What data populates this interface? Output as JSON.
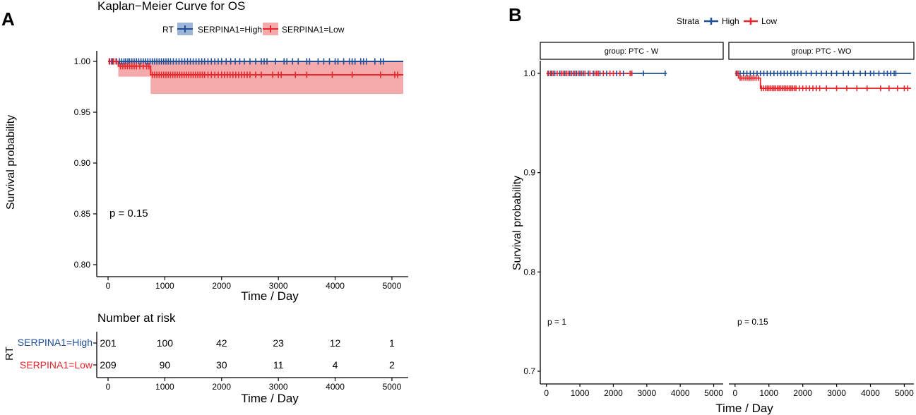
{
  "panel_a": {
    "letter": "A",
    "title": "Kaplan−Meier Curve for OS",
    "legend": {
      "title": "RT",
      "items": [
        "SERPINA1=High",
        "SERPINA1=Low"
      ]
    },
    "ylabel": "Survival probability",
    "xlabel_time": "Time",
    "xlabel_sep": "/",
    "xlabel_unit": "Day",
    "pvalue": "p = 0.15",
    "risk_table": {
      "title": "Number at risk",
      "ylabel": "RT",
      "rows": [
        {
          "label": "SERPINA1=High",
          "values": [
            201,
            100,
            42,
            23,
            12,
            1
          ]
        },
        {
          "label": "SERPINA1=Low",
          "values": [
            209,
            90,
            30,
            11,
            4,
            2
          ]
        }
      ]
    }
  },
  "panel_b": {
    "letter": "B",
    "legend": {
      "title": "Strata",
      "items": [
        "High",
        "Low"
      ]
    },
    "facets": [
      "group: PTC - W",
      "group: PTC - WO"
    ],
    "pvalues": [
      "p = 1",
      "p = 0.15"
    ],
    "ylabel": "Survival probability",
    "xlabel_time": "Time",
    "xlabel_sep": "/",
    "xlabel_unit": "Day"
  },
  "colors": {
    "high": "#1f4e96",
    "low": "#e8262b",
    "low_ci": "#f4aaaa",
    "high_ci": "#9db6d8"
  },
  "chart_data": [
    {
      "type": "line",
      "title": "Kaplan−Meier Curve for OS",
      "xlabel": "Time / Day",
      "ylabel": "Survival probability",
      "xlim": [
        0,
        5200
      ],
      "ylim": [
        0.8,
        1.0
      ],
      "xticks": [
        0,
        1000,
        2000,
        3000,
        4000,
        5000
      ],
      "yticks": [
        "0.80",
        "0.85",
        "0.90",
        "0.95",
        "1.00"
      ],
      "series": [
        {
          "name": "SERPINA1=High",
          "steps": [
            [
              0,
              1.0
            ],
            [
              5200,
              1.0
            ]
          ],
          "censor": [
            30,
            80,
            150,
            200,
            240,
            280,
            310,
            350,
            380,
            420,
            460,
            500,
            540,
            580,
            620,
            660,
            700,
            740,
            780,
            820,
            860,
            900,
            940,
            980,
            1020,
            1060,
            1100,
            1150,
            1200,
            1250,
            1300,
            1350,
            1400,
            1450,
            1500,
            1550,
            1600,
            1650,
            1700,
            1760,
            1820,
            1880,
            1940,
            2000,
            2080,
            2160,
            2240,
            2320,
            2400,
            2500,
            2600,
            2700,
            2750,
            2800,
            2950,
            3100,
            3150,
            3250,
            3350,
            3500,
            3550,
            3700,
            3800,
            3900,
            4000,
            4050,
            4150,
            4250,
            4300,
            4350,
            4450,
            4500,
            4550,
            4700,
            4800,
            4850
          ]
        },
        {
          "name": "SERPINA1=Low",
          "steps": [
            [
              0,
              1.0
            ],
            [
              180,
              1.0
            ],
            [
              180,
              0.9953
            ],
            [
              750,
              0.9953
            ],
            [
              750,
              0.9868
            ],
            [
              5200,
              0.9868
            ]
          ],
          "censor": [
            20,
            60,
            100,
            140,
            220,
            260,
            300,
            340,
            380,
            420,
            460,
            500,
            560,
            620,
            680,
            720,
            780,
            820,
            860,
            900,
            940,
            980,
            1020,
            1060,
            1100,
            1140,
            1180,
            1220,
            1260,
            1300,
            1340,
            1380,
            1420,
            1460,
            1500,
            1540,
            1580,
            1620,
            1660,
            1700,
            1760,
            1820,
            1880,
            1940,
            2000,
            2050,
            2100,
            2150,
            2200,
            2250,
            2300,
            2350,
            2400,
            2450,
            2500,
            2600,
            2700,
            2900,
            3000,
            3050,
            3300,
            3500,
            3950,
            4300,
            4800,
            5050,
            5100
          ],
          "ci_lower": [
            [
              180,
              0.985
            ],
            [
              750,
              0.968
            ],
            [
              5200,
              0.968
            ]
          ],
          "ci_upper": 1.0
        }
      ],
      "pvalue": 0.15
    },
    {
      "type": "line",
      "facet": "group: PTC - W",
      "xlim": [
        -100,
        5200
      ],
      "ylim": [
        0.7,
        1.0
      ],
      "xticks": [
        0,
        1000,
        2000,
        3000,
        4000,
        5000
      ],
      "yticks": [
        "0.7",
        "0.8",
        "0.9",
        "1.0"
      ],
      "series": [
        {
          "name": "High",
          "steps": [
            [
              0,
              1.0
            ],
            [
              3600,
              1.0
            ]
          ],
          "censor": [
            60,
            150,
            250,
            400,
            550,
            700,
            800,
            900,
            1000,
            1100,
            1250,
            1400,
            1600,
            1800,
            2100,
            2300,
            2550,
            2900,
            3550
          ]
        },
        {
          "name": "Low",
          "steps": [
            [
              0,
              1.0
            ],
            [
              2550,
              1.0
            ]
          ],
          "censor": [
            40,
            120,
            200,
            320,
            450,
            500,
            600,
            650,
            750,
            850,
            950,
            1050,
            1150,
            1300,
            1450,
            1500,
            1550,
            1700,
            1900,
            2000,
            2200,
            2500,
            2550
          ]
        }
      ],
      "pvalue": 1
    },
    {
      "type": "line",
      "facet": "group: PTC - WO",
      "xlim": [
        -100,
        5200
      ],
      "ylim": [
        0.7,
        1.0
      ],
      "xticks": [
        0,
        1000,
        2000,
        3000,
        4000,
        5000
      ],
      "series": [
        {
          "name": "High",
          "steps": [
            [
              0,
              1.0
            ],
            [
              5200,
              1.0
            ]
          ],
          "censor": [
            50,
            150,
            250,
            350,
            450,
            550,
            650,
            750,
            850,
            950,
            1050,
            1150,
            1250,
            1350,
            1450,
            1550,
            1650,
            1750,
            1850,
            1950,
            2100,
            2250,
            2400,
            2550,
            2700,
            2850,
            3000,
            3200,
            3350,
            3500,
            3700,
            3850,
            4000,
            4100,
            4250,
            4400,
            4500,
            4600,
            4700,
            4750
          ]
        },
        {
          "name": "Low",
          "steps": [
            [
              0,
              1.0
            ],
            [
              100,
              1.0
            ],
            [
              100,
              0.9953
            ],
            [
              750,
              0.9953
            ],
            [
              750,
              0.985
            ],
            [
              5200,
              0.985
            ]
          ],
          "censor": [
            30,
            90,
            150,
            200,
            260,
            320,
            380,
            440,
            500,
            560,
            620,
            690,
            780,
            840,
            900,
            950,
            1000,
            1050,
            1100,
            1150,
            1200,
            1250,
            1300,
            1350,
            1400,
            1450,
            1500,
            1550,
            1600,
            1650,
            1700,
            1750,
            1800,
            1900,
            2000,
            2100,
            2200,
            2300,
            2400,
            2500,
            2700,
            3000,
            3300,
            3600,
            3900,
            4300,
            4550,
            4800,
            5000,
            5100
          ]
        }
      ],
      "pvalue": 0.15
    }
  ]
}
